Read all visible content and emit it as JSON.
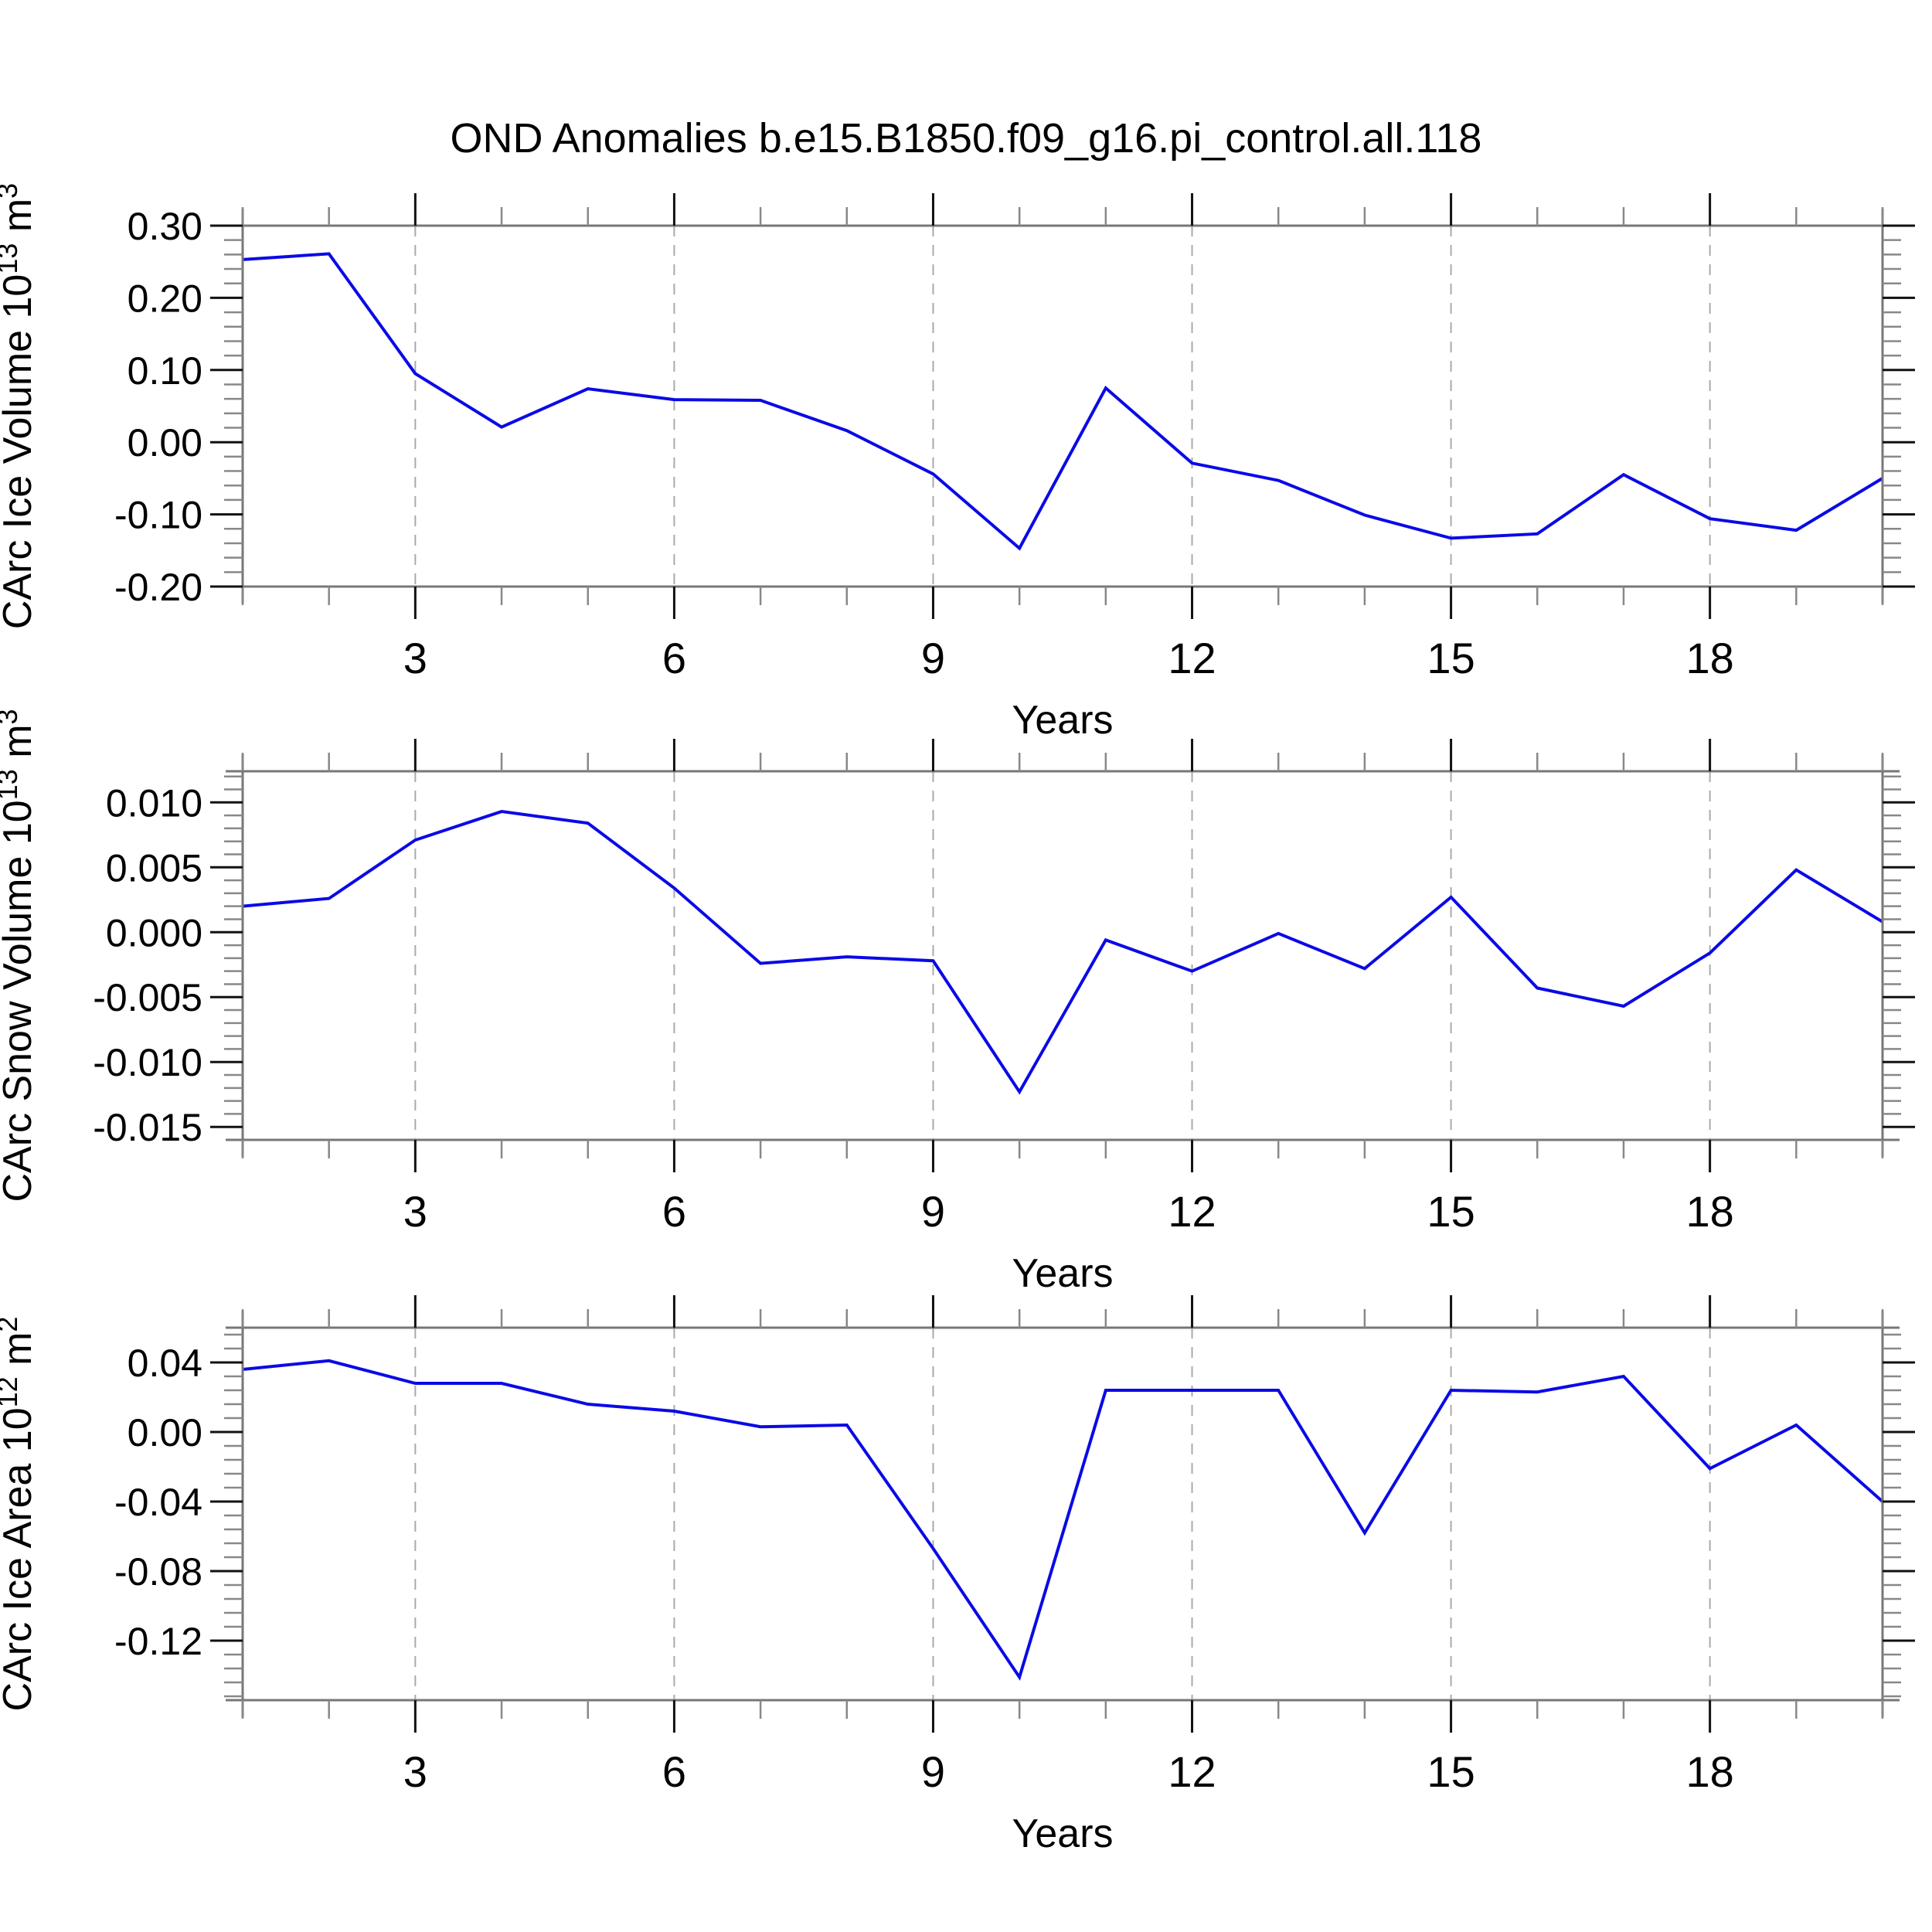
{
  "title": "OND Anomalies b.e15.B1850.f09_g16.pi_control.all.118",
  "colors": {
    "line": "#0a0ae6",
    "grid": "#aaaaaa",
    "spine": "#777777",
    "tick_major": "#111111",
    "tick_minor": "#888888",
    "text": "#000000"
  },
  "chart_data": [
    {
      "type": "line",
      "ylabel": "CArc Ice Volume 10^13 m^3",
      "ylabel_segments": [
        {
          "t": "CArc Ice Volume 10"
        },
        {
          "t": "13",
          "sup": true
        },
        {
          "t": " m"
        },
        {
          "t": "3",
          "sup": true
        }
      ],
      "xlabel": "Years",
      "x": [
        1,
        2,
        3,
        4,
        5,
        6,
        7,
        8,
        9,
        10,
        11,
        12,
        13,
        14,
        15,
        16,
        17,
        18,
        19,
        20
      ],
      "values": [
        0.253,
        0.261,
        0.095,
        0.021,
        0.074,
        0.059,
        0.058,
        0.016,
        -0.044,
        -0.147,
        0.075,
        -0.029,
        -0.053,
        -0.101,
        -0.133,
        -0.127,
        -0.045,
        -0.106,
        -0.122,
        -0.05
      ],
      "xlim": [
        1,
        20
      ],
      "ylim": [
        -0.2,
        0.3
      ],
      "yticks": [
        {
          "v": 0.3,
          "label": "0.30"
        },
        {
          "v": 0.2,
          "label": "0.20"
        },
        {
          "v": 0.1,
          "label": "0.10"
        },
        {
          "v": 0.0,
          "label": "0.00"
        },
        {
          "v": -0.1,
          "label": "-0.10"
        },
        {
          "v": -0.2,
          "label": "-0.20"
        }
      ],
      "yminor_step": 0.02,
      "xticks_major": [
        {
          "v": 3,
          "label": "3"
        },
        {
          "v": 6,
          "label": "6"
        },
        {
          "v": 9,
          "label": "9"
        },
        {
          "v": 12,
          "label": "12"
        },
        {
          "v": 15,
          "label": "15"
        },
        {
          "v": 18,
          "label": "18"
        }
      ],
      "xminor_step": 1,
      "grid": "vertical-dashed",
      "legend": "none"
    },
    {
      "type": "line",
      "ylabel": "CArc Snow Volume 10^13 m^3",
      "ylabel_segments": [
        {
          "t": "CArc Snow Volume 10"
        },
        {
          "t": "13",
          "sup": true
        },
        {
          "t": " m"
        },
        {
          "t": "3",
          "sup": true
        }
      ],
      "xlabel": "Years",
      "x": [
        1,
        2,
        3,
        4,
        5,
        6,
        7,
        8,
        9,
        10,
        11,
        12,
        13,
        14,
        15,
        16,
        17,
        18,
        19,
        20
      ],
      "values": [
        0.002,
        0.0026,
        0.0071,
        0.0093,
        0.0084,
        0.0034,
        -0.0024,
        -0.0019,
        -0.0022,
        -0.0123,
        -0.0006,
        -0.003,
        -0.0001,
        -0.0028,
        0.0027,
        -0.0043,
        -0.0057,
        -0.0016,
        0.0048,
        0.0008
      ],
      "xlim": [
        1,
        20
      ],
      "ylim": [
        -0.016,
        0.0124
      ],
      "yticks": [
        {
          "v": 0.01,
          "label": "0.010"
        },
        {
          "v": 0.005,
          "label": "0.005"
        },
        {
          "v": 0.0,
          "label": "0.000"
        },
        {
          "v": -0.005,
          "label": "-0.005"
        },
        {
          "v": -0.01,
          "label": "-0.010"
        },
        {
          "v": -0.015,
          "label": "-0.015"
        }
      ],
      "yminor_step": 0.001,
      "xticks_major": [
        {
          "v": 3,
          "label": "3"
        },
        {
          "v": 6,
          "label": "6"
        },
        {
          "v": 9,
          "label": "9"
        },
        {
          "v": 12,
          "label": "12"
        },
        {
          "v": 15,
          "label": "15"
        },
        {
          "v": 18,
          "label": "18"
        }
      ],
      "xminor_step": 1,
      "grid": "vertical-dashed",
      "legend": "none"
    },
    {
      "type": "line",
      "ylabel": "CArc Ice Area 10^12 m^2",
      "ylabel_segments": [
        {
          "t": "CArc Ice Area 10"
        },
        {
          "t": "12",
          "sup": true
        },
        {
          "t": " m"
        },
        {
          "t": "2",
          "sup": true
        }
      ],
      "xlabel": "Years",
      "x": [
        1,
        2,
        3,
        4,
        5,
        6,
        7,
        8,
        9,
        10,
        11,
        12,
        13,
        14,
        15,
        16,
        17,
        18,
        19,
        20
      ],
      "values": [
        0.036,
        0.041,
        0.028,
        0.028,
        0.016,
        0.012,
        0.003,
        0.004,
        -0.067,
        -0.141,
        0.024,
        0.024,
        0.024,
        -0.058,
        0.024,
        0.023,
        0.032,
        -0.021,
        0.004,
        -0.04
      ],
      "xlim": [
        1,
        20
      ],
      "ylim": [
        -0.1542,
        0.06
      ],
      "yticks": [
        {
          "v": 0.04,
          "label": "0.04"
        },
        {
          "v": 0.0,
          "label": "0.00"
        },
        {
          "v": -0.04,
          "label": "-0.04"
        },
        {
          "v": -0.08,
          "label": "-0.08"
        },
        {
          "v": -0.12,
          "label": "-0.12"
        }
      ],
      "yminor_step": 0.008,
      "xticks_major": [
        {
          "v": 3,
          "label": "3"
        },
        {
          "v": 6,
          "label": "6"
        },
        {
          "v": 9,
          "label": "9"
        },
        {
          "v": 12,
          "label": "12"
        },
        {
          "v": 15,
          "label": "15"
        },
        {
          "v": 18,
          "label": "18"
        }
      ],
      "xminor_step": 1,
      "grid": "vertical-dashed",
      "legend": "none"
    }
  ]
}
